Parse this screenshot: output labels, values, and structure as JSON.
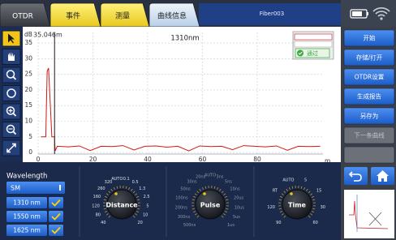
{
  "tabs": [
    "OTDR",
    "事件",
    "测量",
    "曲线信息"
  ],
  "file_name": "Fiber003",
  "buttons": [
    "开始",
    "存储/打开",
    "OTDR设置",
    "生成报告",
    "另存为",
    "下一条曲线"
  ],
  "chart_data": {
    "type": "line",
    "title": "1310nm",
    "y_unit": "dB",
    "x_unit": "m",
    "cursor_label": "35.046m",
    "x": [
      1,
      2.8,
      3,
      3.3,
      3.8,
      4.3,
      5,
      5.5,
      6,
      6.2,
      7,
      11,
      15,
      19,
      23,
      27,
      31,
      35,
      39,
      43,
      47,
      51,
      55,
      59,
      63,
      67,
      71,
      75,
      79,
      83,
      87,
      91,
      95,
      99,
      103
    ],
    "series": [
      {
        "color": "#d01818",
        "values": [
          5,
          5,
          14,
          26,
          27,
          18,
          5,
          5,
          5,
          0.5,
          2,
          1.8,
          2.1,
          0.6,
          2,
          1.9,
          2.2,
          0.8,
          2,
          2.1,
          1.7,
          2,
          0.5,
          2.1,
          1.9,
          2,
          0.9,
          2.2,
          2,
          1.8,
          2.1,
          0.7,
          2,
          1.9,
          2
        ]
      }
    ],
    "xlim": [
      0,
      104
    ],
    "ylim": [
      -0.5,
      38.4
    ],
    "xticks": [
      0,
      20,
      40,
      60,
      80
    ],
    "yticks": [
      0,
      5,
      10,
      15,
      20,
      25,
      30,
      35
    ],
    "grid": true,
    "cursor_x": 6
  },
  "legend_status": "通过",
  "wavelength": {
    "label": "Wavelength",
    "mode": "SM",
    "options": [
      "1310 nm",
      "1550 nm",
      "1625 nm"
    ]
  },
  "knobs": [
    {
      "name": "Distance",
      "labels": [
        "40",
        "80",
        "120",
        "160",
        "260",
        "320",
        "AUTO",
        "0.1",
        "0.5",
        "1.3",
        "2.5",
        "5",
        "10",
        "20"
      ]
    },
    {
      "name": "Pulse",
      "labels": [
        "500ns",
        "300ns",
        "200ns",
        "100ns",
        "50ns",
        "30ns",
        "20ns",
        "AUTO",
        "3ns",
        "5ns",
        "10ns",
        "20us",
        "10us",
        "5us",
        "1us"
      ]
    },
    {
      "name": "Time",
      "labels": [
        "90",
        "120",
        "RT",
        "AUTO",
        "5",
        "15",
        "30",
        "60"
      ]
    }
  ]
}
